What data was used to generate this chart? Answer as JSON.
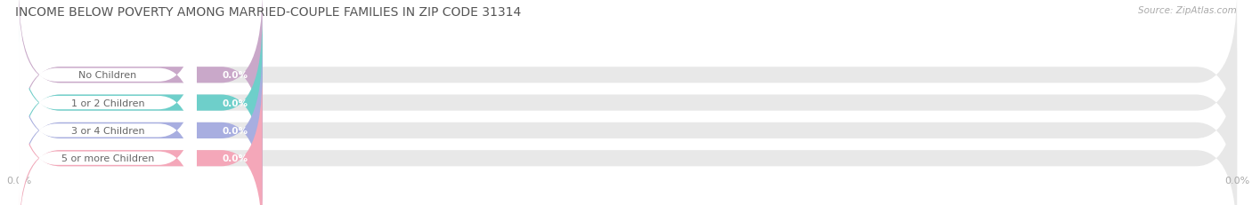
{
  "title": "INCOME BELOW POVERTY AMONG MARRIED-COUPLE FAMILIES IN ZIP CODE 31314",
  "source": "Source: ZipAtlas.com",
  "categories": [
    "No Children",
    "1 or 2 Children",
    "3 or 4 Children",
    "5 or more Children"
  ],
  "values": [
    0.0,
    0.0,
    0.0,
    0.0
  ],
  "bar_colors": [
    "#c9a8c9",
    "#6ecfca",
    "#a8aee0",
    "#f4a7b9"
  ],
  "bg_track_color": "#e8e8e8",
  "title_color": "#555555",
  "source_color": "#aaaaaa",
  "label_color": "#666666",
  "value_label_color": "#ffffff",
  "bg_color": "#ffffff",
  "tick_label_color": "#aaaaaa",
  "grid_color": "#dddddd"
}
